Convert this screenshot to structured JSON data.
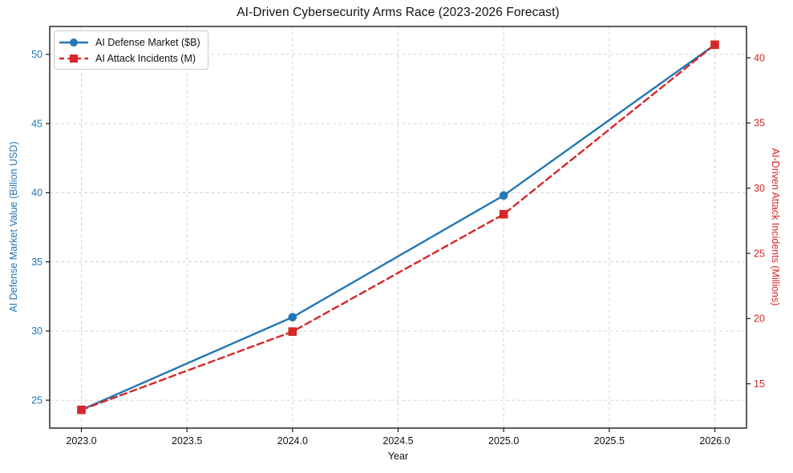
{
  "chart_data": {
    "type": "line",
    "title": "AI-Driven Cybersecurity Arms Race (2023-2026 Forecast)",
    "x": [
      2023,
      2024,
      2025,
      2026
    ],
    "series": [
      {
        "name": "AI Defense Market ($B)",
        "axis": "left",
        "values": [
          24.3,
          31.0,
          39.8,
          50.7
        ],
        "color": "#2277b4",
        "line_style": "solid",
        "marker": "circle"
      },
      {
        "name": "AI Attack Incidents (M)",
        "axis": "right",
        "values": [
          13.0,
          19.0,
          28.0,
          41.0
        ],
        "color": "#d62728",
        "line_style": "dashed",
        "marker": "square"
      }
    ],
    "axes": {
      "x": {
        "label": "Year",
        "lim": [
          2022.85,
          2026.15
        ],
        "ticks": [
          2023.0,
          2023.5,
          2024.0,
          2024.5,
          2025.0,
          2025.5,
          2026.0
        ],
        "tick_labels": [
          "2023.0",
          "2023.5",
          "2024.0",
          "2024.5",
          "2025.0",
          "2025.5",
          "2026.0"
        ],
        "tick_color": "#111111"
      },
      "y_left": {
        "label": "AI Defense Market Value (Billion USD)",
        "lim": [
          22.98,
          52.02
        ],
        "ticks": [
          25,
          30,
          35,
          40,
          45,
          50
        ],
        "tick_labels": [
          "25",
          "30",
          "35",
          "40",
          "45",
          "50"
        ],
        "tick_color": "#2277b4"
      },
      "y_right": {
        "label": "AI-Driven Attack Incidents (Millions)",
        "lim": [
          11.6,
          42.4
        ],
        "ticks": [
          15,
          20,
          25,
          30,
          35,
          40
        ],
        "tick_labels": [
          "15",
          "20",
          "25",
          "30",
          "35",
          "40"
        ],
        "tick_color": "#d62728"
      }
    },
    "grid": {
      "show": true,
      "color": "#cfcfcf",
      "style": "dashed"
    },
    "legend": {
      "position": "upper left"
    },
    "colors": {
      "spine": "#1a1a1a",
      "background": "#ffffff"
    }
  }
}
